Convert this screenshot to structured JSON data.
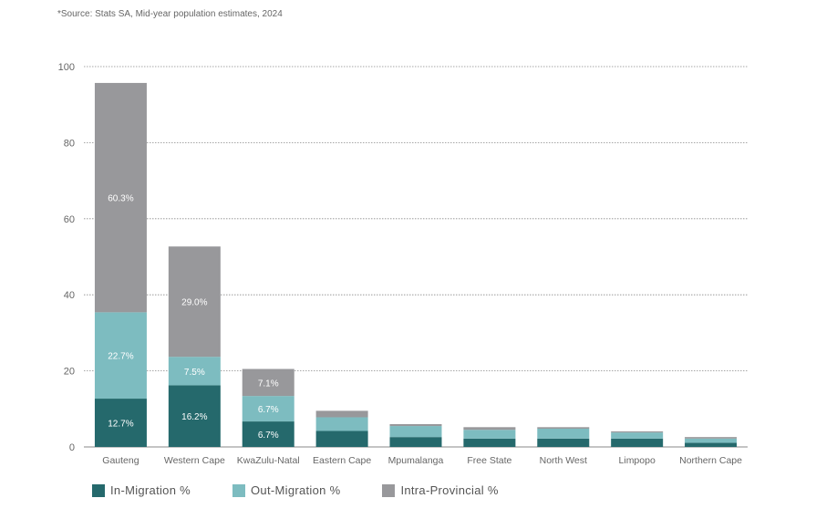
{
  "source_note": "*Source: Stats SA, Mid-year population estimates, 2024",
  "colors": {
    "in_migration": "#25696c",
    "out_migration": "#7dbcc0",
    "intra_provincial": "#98989b",
    "grid": "#8a8a8a",
    "axis_text": "#666666"
  },
  "chart_data": {
    "type": "bar",
    "stacked": true,
    "categories": [
      "Gauteng",
      "Western Cape",
      "KwaZulu-Natal",
      "Eastern Cape",
      "Mpumalanga",
      "Free State",
      "North West",
      "Limpopo",
      "Northern Cape"
    ],
    "series": [
      {
        "name": "In-Migration %",
        "color_key": "in_migration",
        "values": [
          12.7,
          16.2,
          6.7,
          4.2,
          2.6,
          2.2,
          2.2,
          2.2,
          1.1
        ],
        "labels": [
          "12.7%",
          "16.2%",
          "6.7%",
          "",
          "",
          "",
          "",
          "",
          ""
        ]
      },
      {
        "name": "Out-Migration %",
        "color_key": "out_migration",
        "values": [
          22.7,
          7.5,
          6.7,
          3.6,
          2.9,
          2.3,
          2.6,
          1.6,
          1.1
        ],
        "labels": [
          "22.7%",
          "7.5%",
          "6.7%",
          "",
          "",
          "",
          "",
          "",
          ""
        ]
      },
      {
        "name": "Intra-Provincial %",
        "color_key": "intra_provincial",
        "values": [
          60.3,
          29.0,
          7.1,
          1.7,
          0.5,
          0.7,
          0.4,
          0.3,
          0.4
        ],
        "labels": [
          "60.3%",
          "29.0%",
          "7.1%",
          "",
          "",
          "",
          "",
          "",
          ""
        ]
      }
    ],
    "ylim": [
      0,
      100
    ],
    "yticks": [
      0,
      20,
      40,
      60,
      80,
      100
    ],
    "grid": true,
    "legend_position": "bottom-left",
    "xlabel": "",
    "ylabel": ""
  }
}
